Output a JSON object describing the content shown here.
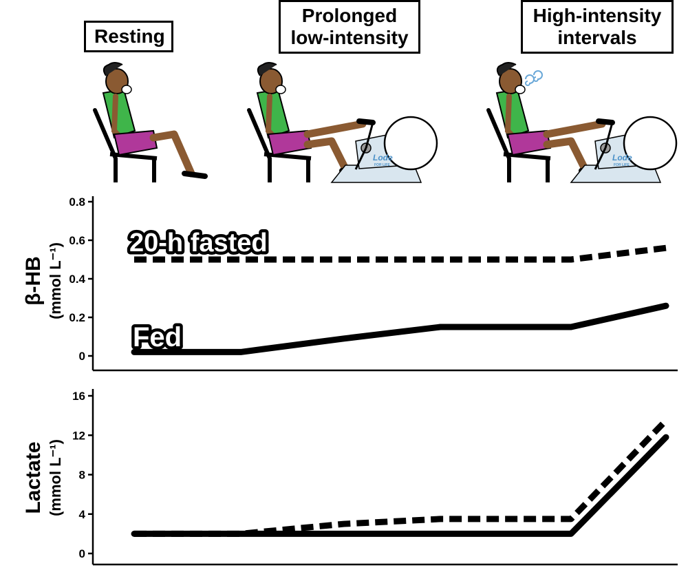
{
  "phases": [
    {
      "line1": "Resting",
      "line2": ""
    },
    {
      "line1": "Prolonged",
      "line2": "low-intensity"
    },
    {
      "line1": "High-intensity",
      "line2": "intervals"
    }
  ],
  "colors": {
    "line": "#000000",
    "skin": "#8a5a32",
    "top": "#3fb54a",
    "shorts": "#b0389a",
    "bike": "#d9e6ef",
    "logo": "#4a90c8",
    "breath": "#6aa8d8"
  },
  "ergometer_logo": {
    "brand": "Lode",
    "tag": "FOR LIFE"
  },
  "chart_data": [
    {
      "type": "line",
      "ylabel": "β-HB",
      "ylabel_unit": "(mmol L⁻¹)",
      "yticks": [
        "0",
        "0.2",
        "0.4",
        "0.6",
        "0.8"
      ],
      "ylim": [
        0,
        0.8
      ],
      "x": [
        0,
        1,
        2,
        3,
        4,
        5
      ],
      "series": [
        {
          "name": "20-h fasted",
          "style": "dashed",
          "values": [
            0.5,
            0.5,
            0.5,
            0.5,
            0.5,
            0.56
          ]
        },
        {
          "name": "Fed",
          "style": "solid",
          "values": [
            0.02,
            0.02,
            0.09,
            0.15,
            0.15,
            0.26
          ]
        }
      ]
    },
    {
      "type": "line",
      "ylabel": "Lactate",
      "ylabel_unit": "(mmol L⁻¹)",
      "yticks": [
        "0",
        "4",
        "8",
        "12",
        "16"
      ],
      "ylim": [
        0,
        16
      ],
      "x": [
        0,
        1,
        2,
        3,
        4,
        5
      ],
      "series": [
        {
          "style": "dashed",
          "values": [
            2.0,
            2.0,
            3.0,
            3.5,
            3.5,
            13.5
          ]
        },
        {
          "style": "solid",
          "values": [
            2.0,
            2.0,
            2.0,
            2.0,
            2.0,
            11.8
          ]
        }
      ]
    }
  ]
}
